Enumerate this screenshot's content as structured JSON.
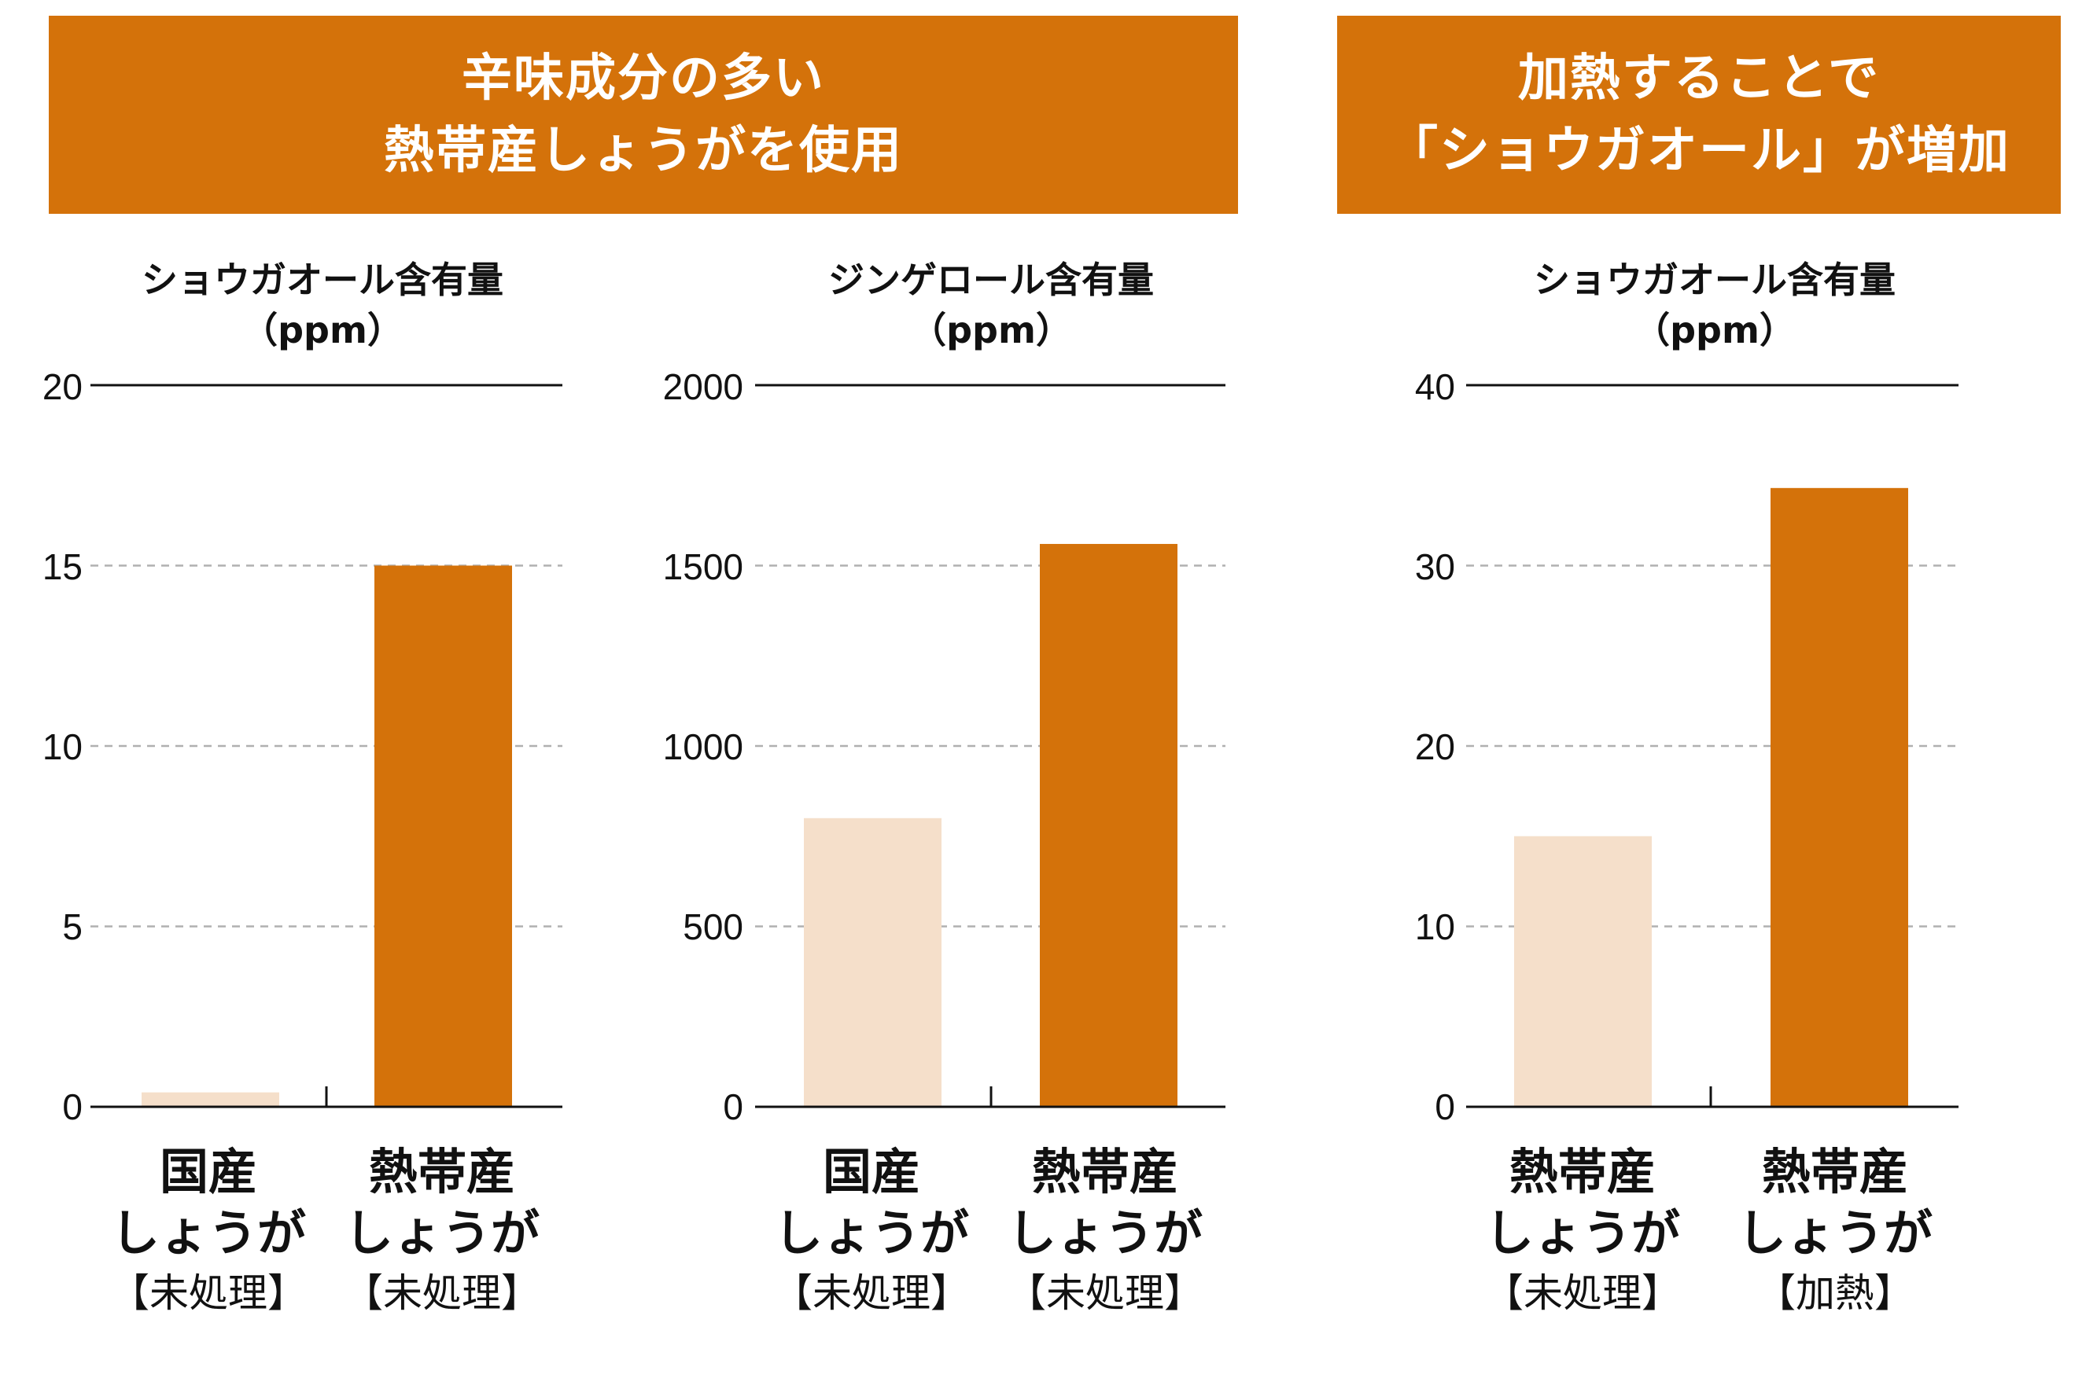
{
  "banners": [
    {
      "line1": "辛味成分の多い",
      "line2": "熱帯産しょうがを使用"
    },
    {
      "line1": "加熱することで",
      "line2": "「ショウガオール」が増加"
    }
  ],
  "colors": {
    "accent": "#d4720a",
    "light": "#f5dfca",
    "grid": "#b0b0b0"
  },
  "chart_data": [
    {
      "type": "bar",
      "title": "ショウガオール含有量",
      "unit": "（ppm）",
      "ylim": [
        0,
        20
      ],
      "yticks": [
        "0",
        "5",
        "10",
        "15",
        "20"
      ],
      "categories": [
        {
          "name": "国産",
          "sub": "しょうが",
          "note": "【未処理】"
        },
        {
          "name": "熱帯産",
          "sub": "しょうが",
          "note": "【未処理】"
        }
      ],
      "values": [
        0.4,
        15.0
      ]
    },
    {
      "type": "bar",
      "title": "ジンゲロール含有量",
      "unit": "（ppm）",
      "ylim": [
        0,
        2000
      ],
      "yticks": [
        "0",
        "500",
        "1000",
        "1500",
        "2000"
      ],
      "categories": [
        {
          "name": "国産",
          "sub": "しょうが",
          "note": "【未処理】"
        },
        {
          "name": "熱帯産",
          "sub": "しょうが",
          "note": "【未処理】"
        }
      ],
      "values": [
        800,
        1560
      ]
    },
    {
      "type": "bar",
      "title": "ショウガオール含有量",
      "unit": "（ppm）",
      "ylim": [
        0,
        40
      ],
      "yticks": [
        "0",
        "10",
        "20",
        "30",
        "40"
      ],
      "categories": [
        {
          "name": "熱帯産",
          "sub": "しょうが",
          "note": "【未処理】"
        },
        {
          "name": "熱帯産",
          "sub": "しょうが",
          "note": "【加熱】"
        }
      ],
      "values": [
        15.0,
        34.3
      ]
    }
  ]
}
